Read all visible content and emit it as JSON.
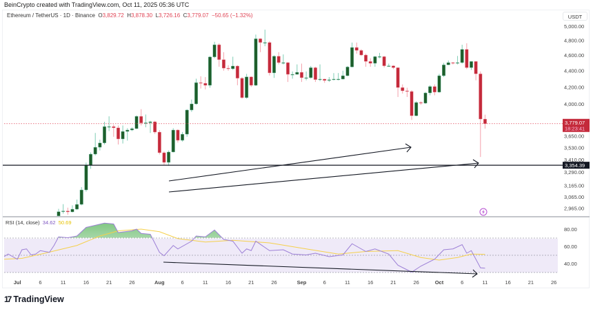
{
  "header": {
    "credit": "BeinCrypto created with TradingView.com, Oct 11, 2025 05:36 UTC",
    "symbol": "Ethereum / TetherUS · 1D · Binance",
    "o_label": "O",
    "o": "3,829.72",
    "h_label": "H",
    "h": "3,878.30",
    "l_label": "L",
    "l": "3,726.16",
    "c_label": "C",
    "c": "3,779.07",
    "change": "−50.65 (−1.32%)"
  },
  "price_axis": {
    "unit": "USDT",
    "scale": "log",
    "ticks": [
      5000,
      4800,
      4600,
      4400,
      4200,
      4000,
      3650,
      3530,
      3410,
      3290,
      3165,
      3065,
      2965
    ],
    "tick_labels": [
      "5,000.00",
      "4,800.00",
      "4,600.00",
      "4,400.00",
      "4,200.00",
      "4,000.00",
      "3,650.00",
      "3,530.00",
      "3,410.00",
      "3,290.00",
      "3,165.00",
      "3,065.00",
      "2,965.00"
    ],
    "current_price": 3779.07,
    "current_price_label": "3,779.07",
    "countdown": "18:23:41",
    "support_level": 3354.39,
    "support_label": "3,354.39"
  },
  "rsi": {
    "label": "RSI (14, close)",
    "value": "34.62",
    "ma_value": "50.69",
    "ticks": [
      80,
      60,
      40
    ],
    "tick_labels": [
      "80.00",
      "60.00",
      "40.00"
    ],
    "upper_band": 70,
    "middle_band": 50,
    "lower_band": 30
  },
  "time_axis": [
    {
      "label": "Jul",
      "date": "2025-07-01"
    },
    {
      "label": "6",
      "date": "2025-07-06"
    },
    {
      "label": "11",
      "date": "2025-07-11"
    },
    {
      "label": "16",
      "date": "2025-07-16"
    },
    {
      "label": "21",
      "date": "2025-07-21"
    },
    {
      "label": "26",
      "date": "2025-07-26"
    },
    {
      "label": "Aug",
      "date": "2025-08-01"
    },
    {
      "label": "6",
      "date": "2025-08-06"
    },
    {
      "label": "11",
      "date": "2025-08-11"
    },
    {
      "label": "16",
      "date": "2025-08-16"
    },
    {
      "label": "21",
      "date": "2025-08-21"
    },
    {
      "label": "26",
      "date": "2025-08-26"
    },
    {
      "label": "Sep",
      "date": "2025-09-01"
    },
    {
      "label": "6",
      "date": "2025-09-06"
    },
    {
      "label": "11",
      "date": "2025-09-11"
    },
    {
      "label": "16",
      "date": "2025-09-16"
    },
    {
      "label": "21",
      "date": "2025-09-21"
    },
    {
      "label": "26",
      "date": "2025-09-26"
    },
    {
      "label": "Oct",
      "date": "2025-10-01"
    },
    {
      "label": "6",
      "date": "2025-10-06"
    },
    {
      "label": "11",
      "date": "2025-10-11"
    },
    {
      "label": "16",
      "date": "2025-10-16"
    },
    {
      "label": "21",
      "date": "2025-10-21"
    },
    {
      "label": "26",
      "date": "2025-10-26"
    }
  ],
  "colors": {
    "up": "#1e5e2b",
    "up_wick": "#7fcdb5",
    "down": "#c42a3b",
    "down_wick": "#f4a0aa",
    "rsi": "#9c7fd6",
    "rsi_ma": "#f5d04a",
    "band": "#efeaf8",
    "price_line": "#e04455",
    "accent_icon": "#b64fd1"
  },
  "chart_data": {
    "type": "candlestick",
    "title": "Ethereum / TetherUS · 1D · Binance",
    "y_unit": "USDT",
    "y_scale": "log",
    "ylim": [
      2900,
      5100
    ],
    "grid": false,
    "columns": [
      "date",
      "open",
      "high",
      "low",
      "close"
    ],
    "candles": [
      [
        "2025-07-10",
        2900,
        2960,
        2890,
        2936
      ],
      [
        "2025-07-11",
        2936,
        3000,
        2920,
        2942
      ],
      [
        "2025-07-12",
        2942,
        2970,
        2910,
        2934
      ],
      [
        "2025-07-13",
        2934,
        2990,
        2930,
        2957
      ],
      [
        "2025-07-14",
        2957,
        3040,
        2950,
        2998
      ],
      [
        "2025-07-15",
        2998,
        3150,
        2990,
        3125
      ],
      [
        "2025-07-16",
        3125,
        3380,
        3110,
        3356
      ],
      [
        "2025-07-17",
        3356,
        3480,
        3320,
        3463
      ],
      [
        "2025-07-18",
        3463,
        3680,
        3450,
        3532
      ],
      [
        "2025-07-19",
        3532,
        3610,
        3500,
        3576
      ],
      [
        "2025-07-20",
        3576,
        3800,
        3560,
        3748
      ],
      [
        "2025-07-21",
        3748,
        3860,
        3700,
        3748
      ],
      [
        "2025-07-22",
        3748,
        3770,
        3640,
        3735
      ],
      [
        "2025-07-23",
        3735,
        3760,
        3560,
        3617
      ],
      [
        "2025-07-24",
        3617,
        3760,
        3570,
        3696
      ],
      [
        "2025-07-25",
        3696,
        3730,
        3600,
        3711
      ],
      [
        "2025-07-26",
        3711,
        3740,
        3700,
        3726
      ],
      [
        "2025-07-27",
        3726,
        3870,
        3720,
        3860
      ],
      [
        "2025-07-28",
        3860,
        3940,
        3760,
        3787
      ],
      [
        "2025-07-29",
        3787,
        3880,
        3740,
        3789
      ],
      [
        "2025-07-30",
        3789,
        3810,
        3680,
        3800
      ],
      [
        "2025-07-31",
        3800,
        3810,
        3670,
        3689
      ],
      [
        "2025-08-01",
        3689,
        3710,
        3460,
        3477
      ],
      [
        "2025-08-02",
        3477,
        3490,
        3360,
        3382
      ],
      [
        "2025-08-03",
        3382,
        3500,
        3350,
        3484
      ],
      [
        "2025-08-04",
        3484,
        3730,
        3480,
        3711
      ],
      [
        "2025-08-05",
        3711,
        3720,
        3580,
        3603
      ],
      [
        "2025-08-06",
        3603,
        3690,
        3590,
        3667
      ],
      [
        "2025-08-07",
        3667,
        3940,
        3640,
        3930
      ],
      [
        "2025-08-08",
        3930,
        4050,
        3910,
        4000
      ],
      [
        "2025-08-09",
        4000,
        4300,
        3990,
        4252
      ],
      [
        "2025-08-10",
        4252,
        4330,
        4180,
        4244
      ],
      [
        "2025-08-11",
        4244,
        4320,
        4170,
        4219
      ],
      [
        "2025-08-12",
        4219,
        4590,
        4190,
        4577
      ],
      [
        "2025-08-13",
        4577,
        4780,
        4560,
        4740
      ],
      [
        "2025-08-14",
        4740,
        4760,
        4450,
        4542
      ],
      [
        "2025-08-15",
        4542,
        4640,
        4400,
        4432
      ],
      [
        "2025-08-16",
        4432,
        4470,
        4400,
        4424
      ],
      [
        "2025-08-17",
        4424,
        4580,
        4410,
        4459
      ],
      [
        "2025-08-18",
        4459,
        4470,
        4220,
        4306
      ],
      [
        "2025-08-19",
        4306,
        4320,
        4060,
        4072
      ],
      [
        "2025-08-20",
        4072,
        4360,
        4060,
        4323
      ],
      [
        "2025-08-21",
        4323,
        4330,
        4200,
        4219
      ],
      [
        "2025-08-22",
        4219,
        4880,
        4210,
        4822
      ],
      [
        "2025-08-23",
        4822,
        4830,
        4640,
        4771
      ],
      [
        "2025-08-24",
        4771,
        4950,
        4720,
        4771
      ],
      [
        "2025-08-25",
        4771,
        4790,
        4340,
        4372
      ],
      [
        "2025-08-26",
        4372,
        4600,
        4310,
        4587
      ],
      [
        "2025-08-27",
        4587,
        4640,
        4480,
        4503
      ],
      [
        "2025-08-28",
        4503,
        4610,
        4480,
        4503
      ],
      [
        "2025-08-29",
        4503,
        4510,
        4260,
        4354
      ],
      [
        "2025-08-30",
        4354,
        4390,
        4300,
        4354
      ],
      [
        "2025-08-31",
        4354,
        4480,
        4350,
        4380
      ],
      [
        "2025-09-01",
        4380,
        4490,
        4260,
        4312
      ],
      [
        "2025-09-02",
        4312,
        4390,
        4280,
        4312
      ],
      [
        "2025-09-03",
        4312,
        4460,
        4300,
        4438
      ],
      [
        "2025-09-04",
        4438,
        4450,
        4260,
        4289
      ],
      [
        "2025-09-05",
        4289,
        4480,
        4270,
        4295
      ],
      [
        "2025-09-06",
        4295,
        4300,
        4250,
        4278
      ],
      [
        "2025-09-07",
        4278,
        4320,
        4260,
        4287
      ],
      [
        "2025-09-08",
        4287,
        4370,
        4280,
        4295
      ],
      [
        "2025-09-09",
        4295,
        4370,
        4280,
        4295
      ],
      [
        "2025-09-10",
        4295,
        4400,
        4290,
        4337
      ],
      [
        "2025-09-11",
        4337,
        4460,
        4330,
        4447
      ],
      [
        "2025-09-12",
        4447,
        4770,
        4440,
        4703
      ],
      [
        "2025-09-13",
        4703,
        4770,
        4620,
        4663
      ],
      [
        "2025-09-14",
        4663,
        4680,
        4590,
        4602
      ],
      [
        "2025-09-15",
        4602,
        4620,
        4450,
        4518
      ],
      [
        "2025-09-16",
        4518,
        4560,
        4450,
        4494
      ],
      [
        "2025-09-17",
        4494,
        4590,
        4450,
        4581
      ],
      [
        "2025-09-18",
        4581,
        4630,
        4560,
        4581
      ],
      [
        "2025-09-19",
        4581,
        4590,
        4440,
        4462
      ],
      [
        "2025-09-20",
        4462,
        4490,
        4450,
        4462
      ],
      [
        "2025-09-21",
        4462,
        4470,
        4420,
        4438
      ],
      [
        "2025-09-22",
        4438,
        4440,
        4080,
        4192
      ],
      [
        "2025-09-23",
        4192,
        4230,
        4120,
        4153
      ],
      [
        "2025-09-24",
        4153,
        4190,
        4080,
        4145
      ],
      [
        "2025-09-25",
        4145,
        4160,
        3820,
        3866
      ],
      [
        "2025-09-26",
        3866,
        4030,
        3860,
        4016
      ],
      [
        "2025-09-27",
        4016,
        4030,
        3990,
        4008
      ],
      [
        "2025-09-28",
        4008,
        4140,
        4000,
        4128
      ],
      [
        "2025-09-29",
        4128,
        4220,
        4100,
        4205
      ],
      [
        "2025-09-30",
        4205,
        4230,
        4100,
        4137
      ],
      [
        "2025-10-01",
        4137,
        4360,
        4130,
        4337
      ],
      [
        "2025-10-02",
        4337,
        4500,
        4320,
        4474
      ],
      [
        "2025-10-03",
        4474,
        4530,
        4470,
        4503
      ],
      [
        "2025-10-04",
        4503,
        4510,
        4480,
        4499
      ],
      [
        "2025-10-05",
        4499,
        4590,
        4480,
        4503
      ],
      [
        "2025-10-06",
        4503,
        4740,
        4490,
        4678
      ],
      [
        "2025-10-07",
        4678,
        4760,
        4420,
        4438
      ],
      [
        "2025-10-08",
        4438,
        4520,
        4410,
        4518
      ],
      [
        "2025-10-09",
        4518,
        4520,
        4280,
        4360
      ],
      [
        "2025-10-10",
        4360,
        4390,
        3435,
        3829.72
      ],
      [
        "2025-10-11",
        3829.72,
        3878.3,
        3726.16,
        3779.07
      ]
    ],
    "rsi_series": [
      [
        "2025-06-28",
        48
      ],
      [
        "2025-06-29",
        51
      ],
      [
        "2025-07-01",
        45
      ],
      [
        "2025-07-02",
        56
      ],
      [
        "2025-07-03",
        57
      ],
      [
        "2025-07-04",
        50
      ],
      [
        "2025-07-05",
        51
      ],
      [
        "2025-07-06",
        55
      ],
      [
        "2025-07-08",
        53
      ],
      [
        "2025-07-09",
        61
      ],
      [
        "2025-07-10",
        71
      ],
      [
        "2025-07-12",
        70
      ],
      [
        "2025-07-14",
        72
      ],
      [
        "2025-07-16",
        82
      ],
      [
        "2025-07-20",
        87
      ],
      [
        "2025-07-22",
        86
      ],
      [
        "2025-07-23",
        76
      ],
      [
        "2025-07-26",
        78
      ],
      [
        "2025-07-27",
        80
      ],
      [
        "2025-07-28",
        75
      ],
      [
        "2025-07-30",
        74
      ],
      [
        "2025-08-01",
        53
      ],
      [
        "2025-08-02",
        49
      ],
      [
        "2025-08-04",
        61
      ],
      [
        "2025-08-05",
        57
      ],
      [
        "2025-08-08",
        66
      ],
      [
        "2025-08-09",
        72
      ],
      [
        "2025-08-11",
        71
      ],
      [
        "2025-08-13",
        79
      ],
      [
        "2025-08-15",
        68
      ],
      [
        "2025-08-17",
        66
      ],
      [
        "2025-08-19",
        52
      ],
      [
        "2025-08-20",
        57
      ],
      [
        "2025-08-21",
        55
      ],
      [
        "2025-08-22",
        66
      ],
      [
        "2025-08-25",
        55
      ],
      [
        "2025-08-28",
        56
      ],
      [
        "2025-08-30",
        51
      ],
      [
        "2025-09-02",
        50
      ],
      [
        "2025-09-04",
        52
      ],
      [
        "2025-09-07",
        48
      ],
      [
        "2025-09-10",
        50
      ],
      [
        "2025-09-12",
        63
      ],
      [
        "2025-09-15",
        54
      ],
      [
        "2025-09-17",
        57
      ],
      [
        "2025-09-20",
        51
      ],
      [
        "2025-09-22",
        38
      ],
      [
        "2025-09-25",
        30
      ],
      [
        "2025-09-27",
        37
      ],
      [
        "2025-09-30",
        45
      ],
      [
        "2025-10-02",
        56
      ],
      [
        "2025-10-04",
        57
      ],
      [
        "2025-10-06",
        62
      ],
      [
        "2025-10-07",
        52
      ],
      [
        "2025-10-08",
        55
      ],
      [
        "2025-10-10",
        35
      ],
      [
        "2025-10-11",
        34.62
      ]
    ],
    "rsi_ma_series": [
      [
        "2025-06-28",
        45
      ],
      [
        "2025-07-02",
        46
      ],
      [
        "2025-07-07",
        52
      ],
      [
        "2025-07-14",
        61
      ],
      [
        "2025-07-19",
        72
      ],
      [
        "2025-07-23",
        78
      ],
      [
        "2025-07-28",
        80
      ],
      [
        "2025-08-01",
        77
      ],
      [
        "2025-08-05",
        69
      ],
      [
        "2025-08-11",
        65
      ],
      [
        "2025-08-17",
        67
      ],
      [
        "2025-08-25",
        64
      ],
      [
        "2025-09-02",
        57
      ],
      [
        "2025-09-09",
        51
      ],
      [
        "2025-09-15",
        54
      ],
      [
        "2025-09-22",
        55
      ],
      [
        "2025-09-27",
        47
      ],
      [
        "2025-10-01",
        44
      ],
      [
        "2025-10-05",
        47
      ],
      [
        "2025-10-08",
        51
      ],
      [
        "2025-10-11",
        50.69
      ]
    ]
  }
}
